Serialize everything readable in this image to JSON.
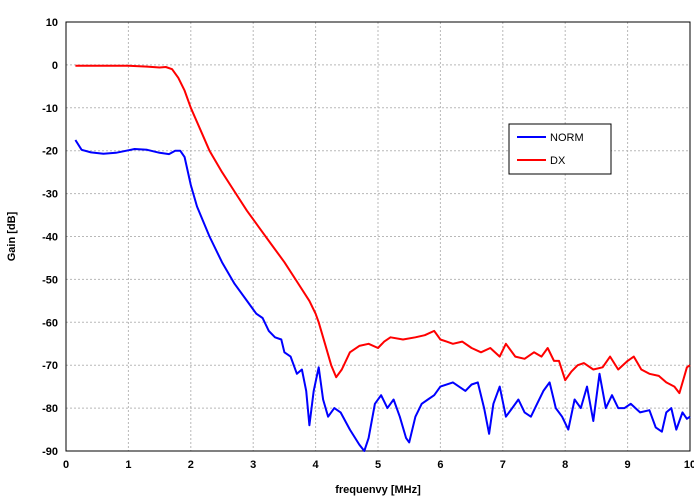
{
  "chart_data": {
    "type": "line",
    "title": "",
    "xlabel": "frequenvy [MHz]",
    "ylabel": "Gain [dB]",
    "xlim": [
      0,
      10
    ],
    "ylim": [
      -90,
      10
    ],
    "xticks": [
      "0",
      "1",
      "2",
      "3",
      "4",
      "5",
      "6",
      "7",
      "8",
      "9",
      "10"
    ],
    "yticks": [
      "10",
      "0",
      "-10",
      "-20",
      "-30",
      "-40",
      "-50",
      "-60",
      "-70",
      "-80",
      "-90"
    ],
    "grid": true,
    "legend_position": "right-upper",
    "series": [
      {
        "name": "NORM",
        "color": "#0000ff",
        "points": [
          [
            0.15,
            -17.5
          ],
          [
            0.25,
            -19.8
          ],
          [
            0.4,
            -20.4
          ],
          [
            0.6,
            -20.7
          ],
          [
            0.8,
            -20.5
          ],
          [
            1.0,
            -19.9
          ],
          [
            1.1,
            -19.6
          ],
          [
            1.3,
            -19.8
          ],
          [
            1.5,
            -20.5
          ],
          [
            1.65,
            -20.8
          ],
          [
            1.75,
            -20.0
          ],
          [
            1.83,
            -20.0
          ],
          [
            1.9,
            -21.5
          ],
          [
            2.0,
            -28
          ],
          [
            2.1,
            -33
          ],
          [
            2.3,
            -40
          ],
          [
            2.5,
            -46
          ],
          [
            2.7,
            -51
          ],
          [
            2.9,
            -55
          ],
          [
            3.05,
            -58
          ],
          [
            3.15,
            -59
          ],
          [
            3.25,
            -62
          ],
          [
            3.35,
            -63.5
          ],
          [
            3.45,
            -64
          ],
          [
            3.5,
            -67
          ],
          [
            3.6,
            -68
          ],
          [
            3.7,
            -72
          ],
          [
            3.78,
            -71
          ],
          [
            3.85,
            -76
          ],
          [
            3.9,
            -84
          ],
          [
            3.97,
            -76
          ],
          [
            4.05,
            -70.5
          ],
          [
            4.12,
            -78
          ],
          [
            4.2,
            -82
          ],
          [
            4.3,
            -80
          ],
          [
            4.4,
            -81
          ],
          [
            4.55,
            -85
          ],
          [
            4.7,
            -88.5
          ],
          [
            4.78,
            -90
          ],
          [
            4.85,
            -87
          ],
          [
            4.95,
            -79
          ],
          [
            5.05,
            -77
          ],
          [
            5.15,
            -80
          ],
          [
            5.25,
            -78
          ],
          [
            5.35,
            -82
          ],
          [
            5.45,
            -87
          ],
          [
            5.5,
            -88
          ],
          [
            5.6,
            -82
          ],
          [
            5.7,
            -79
          ],
          [
            5.8,
            -78
          ],
          [
            5.9,
            -77
          ],
          [
            6.0,
            -75
          ],
          [
            6.2,
            -74
          ],
          [
            6.4,
            -76
          ],
          [
            6.5,
            -74.5
          ],
          [
            6.6,
            -74
          ],
          [
            6.7,
            -80
          ],
          [
            6.78,
            -86
          ],
          [
            6.85,
            -79
          ],
          [
            6.95,
            -75
          ],
          [
            7.05,
            -82
          ],
          [
            7.15,
            -80
          ],
          [
            7.25,
            -78
          ],
          [
            7.35,
            -81
          ],
          [
            7.45,
            -82
          ],
          [
            7.55,
            -79
          ],
          [
            7.65,
            -76
          ],
          [
            7.75,
            -74
          ],
          [
            7.85,
            -80
          ],
          [
            7.95,
            -82
          ],
          [
            8.05,
            -85
          ],
          [
            8.15,
            -78
          ],
          [
            8.25,
            -80
          ],
          [
            8.35,
            -75
          ],
          [
            8.45,
            -83
          ],
          [
            8.55,
            -72
          ],
          [
            8.65,
            -80
          ],
          [
            8.75,
            -77
          ],
          [
            8.85,
            -80
          ],
          [
            8.95,
            -80
          ],
          [
            9.05,
            -79
          ],
          [
            9.2,
            -81
          ],
          [
            9.35,
            -80.5
          ],
          [
            9.45,
            -84.5
          ],
          [
            9.55,
            -85.5
          ],
          [
            9.62,
            -81
          ],
          [
            9.7,
            -80
          ],
          [
            9.78,
            -85
          ],
          [
            9.88,
            -81
          ],
          [
            9.95,
            -82.5
          ],
          [
            10.0,
            -82
          ]
        ]
      },
      {
        "name": "DX",
        "color": "#ff0000",
        "points": [
          [
            0.15,
            -0.2
          ],
          [
            0.5,
            -0.2
          ],
          [
            1.0,
            -0.2
          ],
          [
            1.3,
            -0.4
          ],
          [
            1.5,
            -0.6
          ],
          [
            1.6,
            -0.5
          ],
          [
            1.7,
            -1.0
          ],
          [
            1.8,
            -3
          ],
          [
            1.9,
            -6
          ],
          [
            2.0,
            -10
          ],
          [
            2.15,
            -15
          ],
          [
            2.3,
            -20
          ],
          [
            2.5,
            -25
          ],
          [
            2.7,
            -29.5
          ],
          [
            2.9,
            -34
          ],
          [
            3.1,
            -38
          ],
          [
            3.3,
            -42
          ],
          [
            3.5,
            -46
          ],
          [
            3.7,
            -50.5
          ],
          [
            3.9,
            -55
          ],
          [
            4.0,
            -58
          ],
          [
            4.05,
            -60
          ],
          [
            4.15,
            -65
          ],
          [
            4.25,
            -70
          ],
          [
            4.33,
            -72.8
          ],
          [
            4.42,
            -71
          ],
          [
            4.55,
            -67
          ],
          [
            4.7,
            -65.5
          ],
          [
            4.85,
            -65
          ],
          [
            5.0,
            -66
          ],
          [
            5.1,
            -64.5
          ],
          [
            5.2,
            -63.5
          ],
          [
            5.4,
            -64
          ],
          [
            5.6,
            -63.5
          ],
          [
            5.75,
            -63
          ],
          [
            5.9,
            -62
          ],
          [
            6.0,
            -64
          ],
          [
            6.1,
            -64.5
          ],
          [
            6.2,
            -65
          ],
          [
            6.35,
            -64.5
          ],
          [
            6.5,
            -66
          ],
          [
            6.65,
            -67
          ],
          [
            6.8,
            -66
          ],
          [
            6.95,
            -68
          ],
          [
            7.05,
            -65
          ],
          [
            7.2,
            -68
          ],
          [
            7.35,
            -68.5
          ],
          [
            7.5,
            -67
          ],
          [
            7.62,
            -68
          ],
          [
            7.72,
            -66
          ],
          [
            7.82,
            -69
          ],
          [
            7.9,
            -69
          ],
          [
            8.0,
            -73.5
          ],
          [
            8.1,
            -71.5
          ],
          [
            8.2,
            -70
          ],
          [
            8.3,
            -69.5
          ],
          [
            8.45,
            -71
          ],
          [
            8.6,
            -70.5
          ],
          [
            8.72,
            -68
          ],
          [
            8.85,
            -71
          ],
          [
            9.0,
            -69
          ],
          [
            9.1,
            -68
          ],
          [
            9.22,
            -71
          ],
          [
            9.35,
            -72
          ],
          [
            9.5,
            -72.5
          ],
          [
            9.62,
            -74
          ],
          [
            9.75,
            -75
          ],
          [
            9.83,
            -76.5
          ],
          [
            9.9,
            -73
          ],
          [
            9.95,
            -70.5
          ],
          [
            10.0,
            -70
          ]
        ]
      }
    ]
  }
}
